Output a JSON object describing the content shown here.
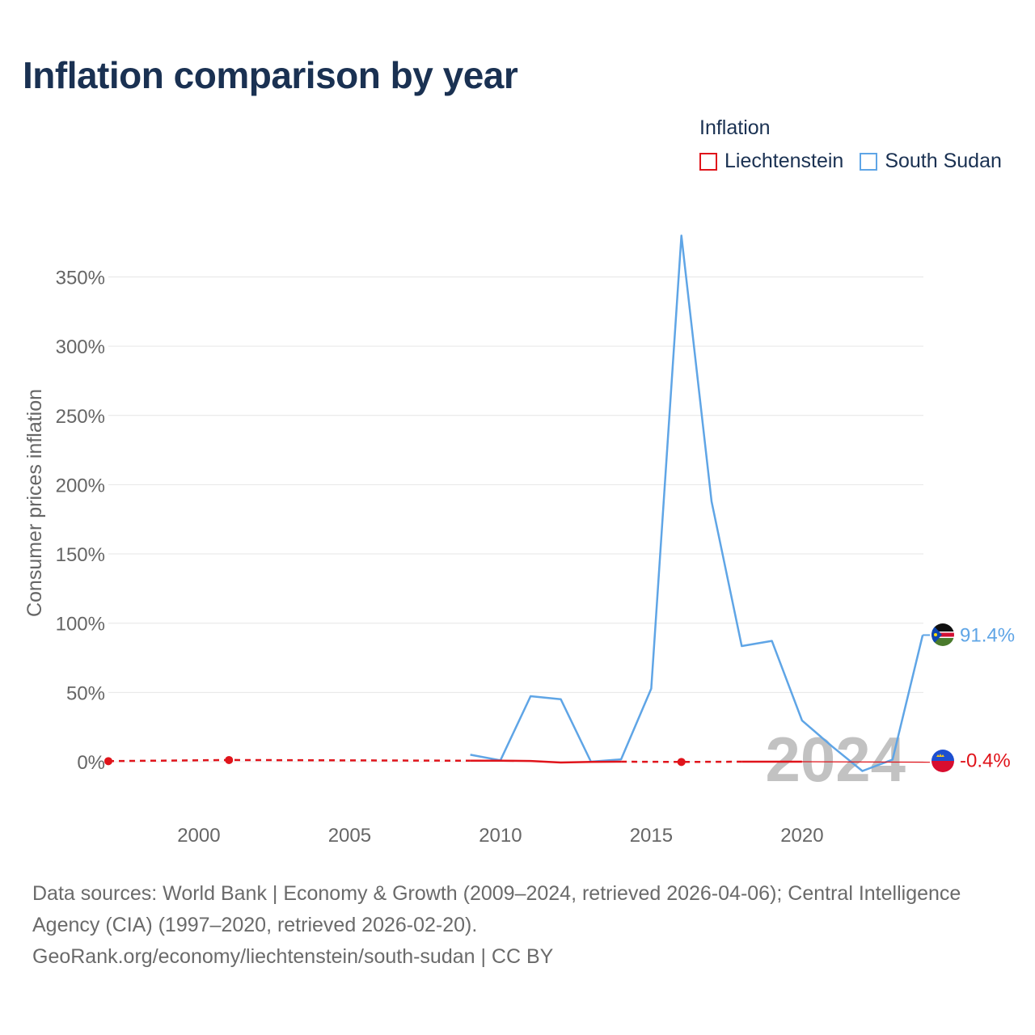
{
  "title": "Inflation comparison by year",
  "legend": {
    "title": "Inflation",
    "items": [
      {
        "label": "Liechtenstein",
        "color": "#e0141b"
      },
      {
        "label": "South Sudan",
        "color": "#5fa5e6"
      }
    ]
  },
  "chart_data": {
    "type": "line",
    "title": "Inflation comparison by year",
    "ylabel": "Consumer prices inflation",
    "xlabel": "",
    "xlim": [
      1997,
      2024
    ],
    "ylim": [
      -30,
      380
    ],
    "x_ticks": [
      2000,
      2005,
      2010,
      2015,
      2020
    ],
    "x_tick_labels": [
      "2000",
      "2005",
      "2010",
      "2015",
      "2020"
    ],
    "y_ticks": [
      0,
      50,
      100,
      150,
      200,
      250,
      300,
      350
    ],
    "y_tick_labels": [
      "0%",
      "50%",
      "100%",
      "150%",
      "200%",
      "250%",
      "300%",
      "350%"
    ],
    "highlight_year": "2024",
    "series": [
      {
        "name": "Liechtenstein",
        "color": "#e0141b",
        "end_label": "-0.4%",
        "solid_segments": [
          [
            [
              2009,
              0.7
            ],
            [
              2010,
              0.7
            ],
            [
              2011,
              0.5
            ],
            [
              2012,
              -0.6
            ],
            [
              2013,
              -0.2
            ],
            [
              2014,
              0.0
            ]
          ],
          [
            [
              2018,
              0.0
            ],
            [
              2019,
              0.0
            ],
            [
              2020,
              0.0
            ]
          ]
        ],
        "dashed_segments": [
          [
            [
              1997,
              0.4
            ],
            [
              2001,
              1.2
            ],
            [
              2009,
              0.7
            ]
          ],
          [
            [
              2014,
              0.0
            ],
            [
              2016,
              -0.2
            ],
            [
              2018,
              0.0
            ]
          ]
        ],
        "markers": [
          [
            1997,
            0.4
          ],
          [
            2001,
            1.2
          ],
          [
            2016,
            -0.2
          ]
        ],
        "end_point": [
          2024,
          -0.4
        ]
      },
      {
        "name": "South Sudan",
        "color": "#5fa5e6",
        "end_label": "91.4%",
        "points": [
          [
            2009,
            5.0
          ],
          [
            2010,
            1.0
          ],
          [
            2011,
            47.3
          ],
          [
            2012,
            45.1
          ],
          [
            2013,
            0.0
          ],
          [
            2014,
            1.7
          ],
          [
            2015,
            52.8
          ],
          [
            2016,
            379.8
          ],
          [
            2017,
            187.9
          ],
          [
            2018,
            83.5
          ],
          [
            2019,
            87.2
          ],
          [
            2020,
            29.7
          ],
          [
            2021,
            11.0
          ],
          [
            2022,
            -6.7
          ],
          [
            2023,
            1.5
          ],
          [
            2024,
            91.4
          ]
        ]
      }
    ]
  },
  "footer": {
    "sources": "Data sources: World Bank | Economy & Growth (2009–2024, retrieved 2026-04-06); Central Intelligence Agency (CIA) (1997–2020, retrieved 2026-02-20).",
    "attribution": "GeoRank.org/economy/liechtenstein/south-sudan | CC BY"
  }
}
